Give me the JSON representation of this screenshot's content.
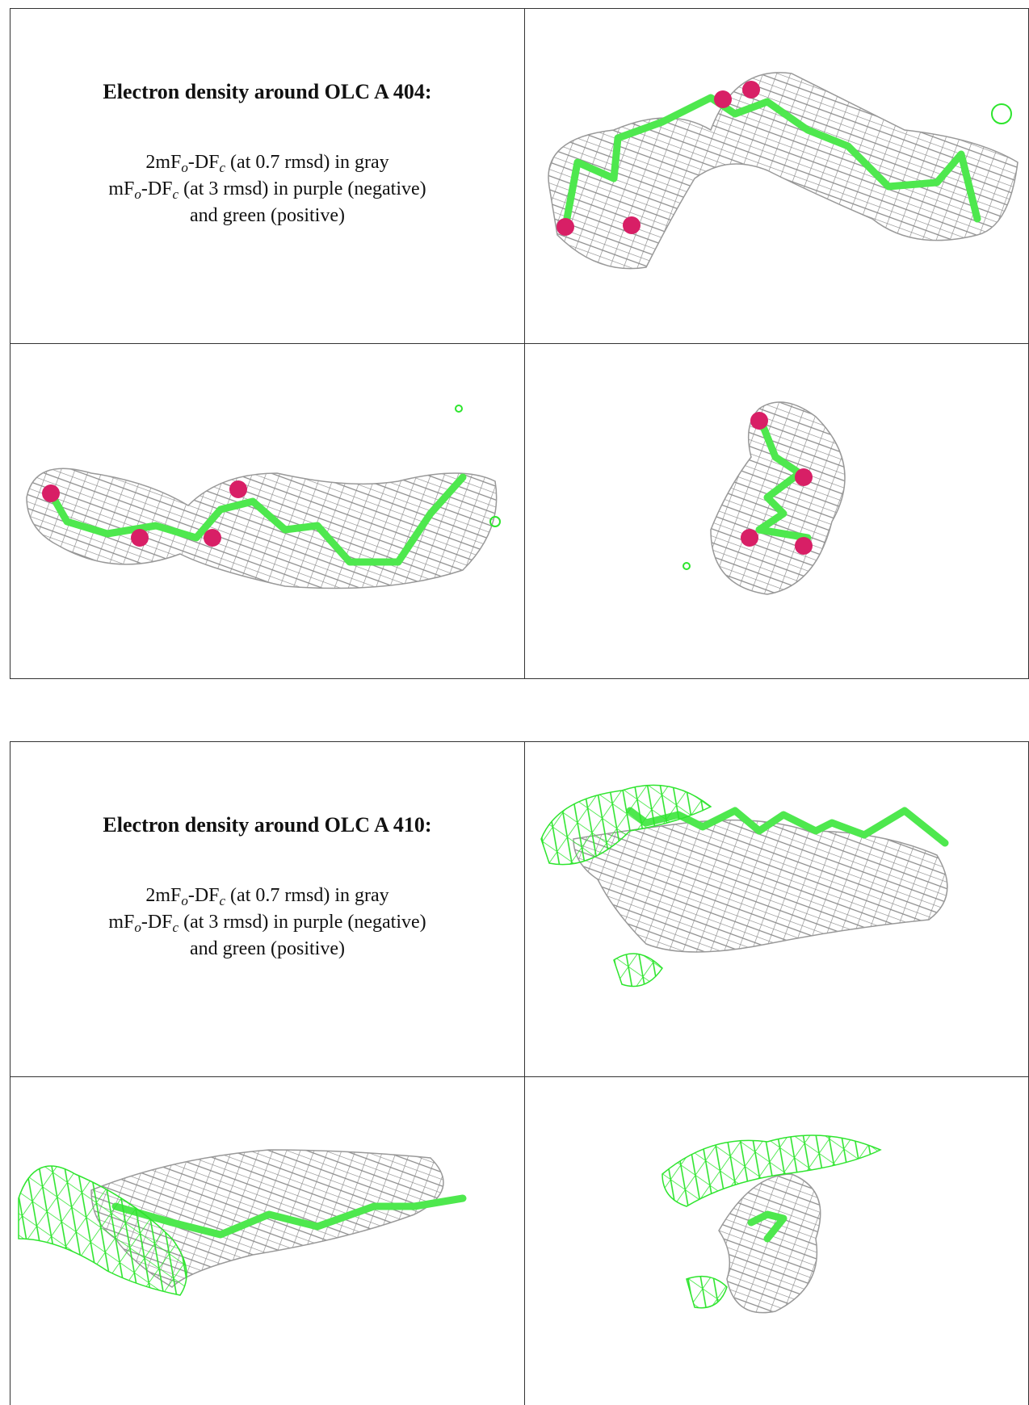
{
  "blocks": [
    {
      "title": "Electron density around OLC A 404:",
      "legend": [
        [
          "2mF",
          "o",
          "-DF",
          "c",
          " (at 0.7 rmsd) in gray"
        ],
        [
          "mF",
          "o",
          "-DF",
          "c",
          " (at 3 rmsd) in purple (negative)"
        ],
        [
          "and green (positive)"
        ]
      ]
    },
    {
      "title": "Electron density around OLC A 410:",
      "legend": [
        [
          "2mF",
          "o",
          "-DF",
          "c",
          " (at 0.7 rmsd) in gray"
        ],
        [
          "mF",
          "o",
          "-DF",
          "c",
          " (at 3 rmsd) in purple (negative)"
        ],
        [
          "and green (positive)"
        ]
      ]
    }
  ]
}
